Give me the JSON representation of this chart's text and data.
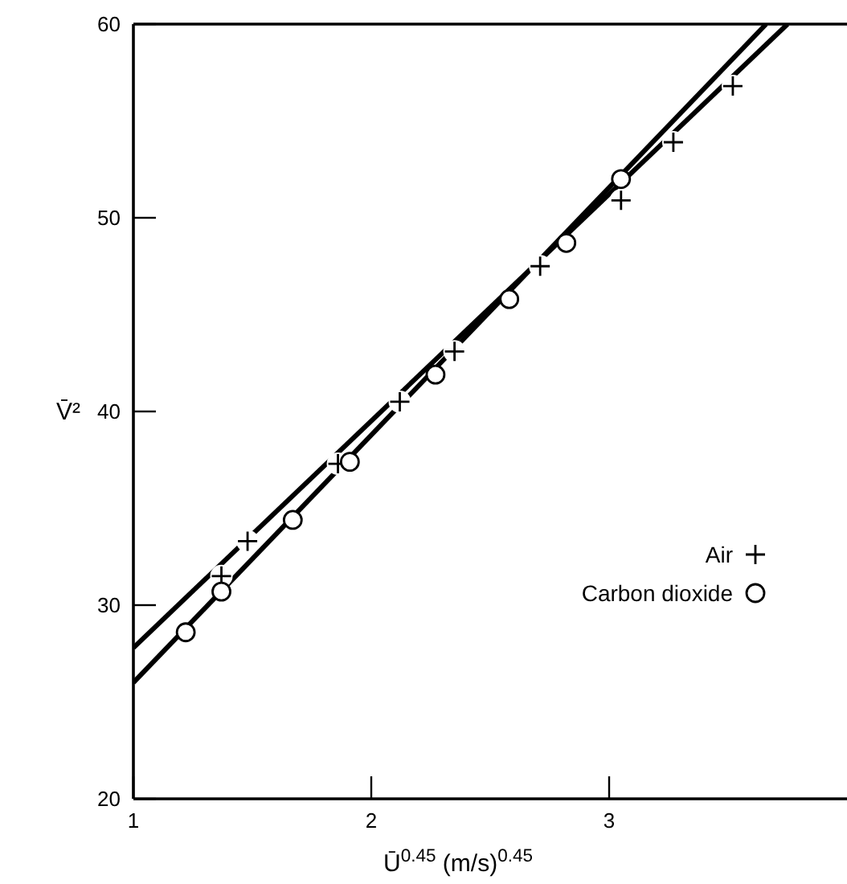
{
  "chart_data": {
    "type": "scatter",
    "xlabel": "Ū$^{0.45}$  (m/s)$^{0.45}$",
    "ylabel": "V̄²",
    "xlim": [
      1,
      4
    ],
    "ylim": [
      20,
      60
    ],
    "xticks": [
      1,
      2,
      3
    ],
    "yticks": [
      20,
      30,
      40,
      50,
      60
    ],
    "grid": false,
    "legend": "right",
    "series": [
      {
        "type": "line",
        "marker": "none",
        "color": "#000000",
        "x": [
          1,
          3.75
        ],
        "values": [
          27.8,
          60
        ]
      },
      {
        "type": "line",
        "marker": "none",
        "color": "#000000",
        "x": [
          1,
          3.66
        ],
        "values": [
          26.0,
          60
        ]
      },
      {
        "name": "Air",
        "marker": "cross",
        "color": "#000000",
        "x": [
          1.37,
          1.48,
          1.86,
          2.12,
          2.35,
          2.71,
          3.05,
          3.27,
          3.52
        ],
        "values": [
          31.5,
          33.3,
          37.3,
          40.5,
          43.1,
          47.5,
          50.9,
          53.9,
          56.8
        ]
      },
      {
        "name": "Carbon dioxide",
        "marker": "circle",
        "color": "#000000",
        "x": [
          1.22,
          1.37,
          1.67,
          1.91,
          2.27,
          2.58,
          2.82,
          3.05
        ],
        "values": [
          28.6,
          30.7,
          34.4,
          37.4,
          41.9,
          45.8,
          48.7,
          52.0
        ]
      }
    ]
  }
}
